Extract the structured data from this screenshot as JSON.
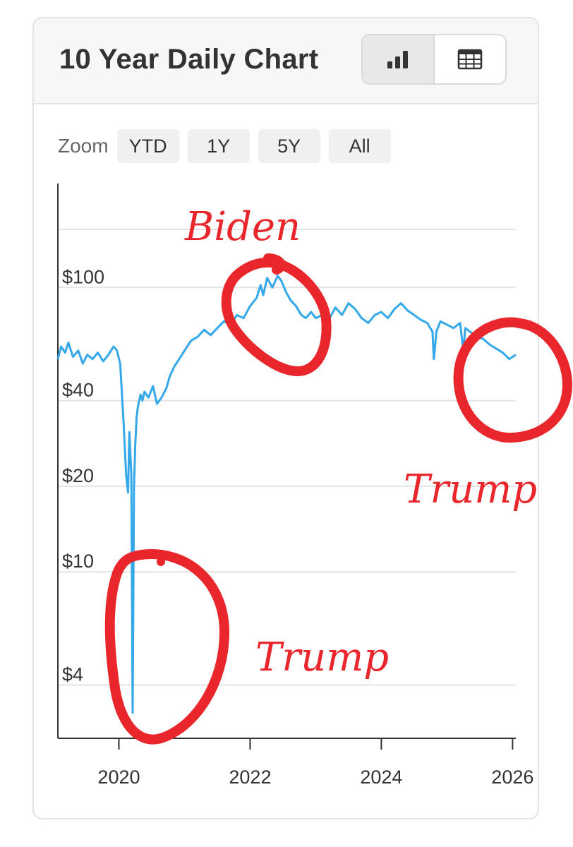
{
  "header": {
    "title": "10 Year Daily Chart",
    "chart_view_icon": "bar-chart-icon",
    "table_view_icon": "table-icon"
  },
  "zoom": {
    "label": "Zoom",
    "options": [
      "YTD",
      "1Y",
      "5Y",
      "All"
    ]
  },
  "annotations": {
    "peak_label": "Biden",
    "recent_label": "Trump",
    "crash_label": "Trump",
    "color": "#e8262b"
  },
  "chart_data": {
    "type": "line",
    "title": "10 Year Daily Chart",
    "y_scale": "log",
    "ylim": [
      2.6,
      160
    ],
    "xlim": [
      2019.07,
      2026.05
    ],
    "yticks": [
      4,
      10,
      20,
      40,
      100
    ],
    "ytick_labels": [
      "$4",
      "$10",
      "$20",
      "$40",
      "$100"
    ],
    "xticks": [
      2020,
      2022,
      2024,
      2026
    ],
    "xtick_labels": [
      "2020",
      "2022",
      "2024",
      "2026"
    ],
    "grid": true,
    "line_color": "#35a8ea",
    "series": [
      {
        "x": [
          2019.07,
          2019.12,
          2019.18,
          2019.23,
          2019.3,
          2019.38,
          2019.45,
          2019.52,
          2019.6,
          2019.68,
          2019.76,
          2019.84,
          2019.92,
          2019.97,
          2020.02,
          2020.07,
          2020.11,
          2020.14,
          2020.16,
          2020.19,
          2020.21,
          2020.23,
          2020.25,
          2020.27,
          2020.29,
          2020.31,
          2020.33,
          2020.36,
          2020.39,
          2020.45,
          2020.52,
          2020.58,
          2020.65,
          2020.72,
          2020.78,
          2020.85,
          2020.92,
          2021.0,
          2021.1,
          2021.2,
          2021.3,
          2021.4,
          2021.5,
          2021.6,
          2021.7,
          2021.8,
          2021.9,
          2022.0,
          2022.1,
          2022.16,
          2022.2,
          2022.26,
          2022.34,
          2022.42,
          2022.48,
          2022.55,
          2022.62,
          2022.7,
          2022.78,
          2022.85,
          2022.93,
          2023.0,
          2023.1,
          2023.2,
          2023.3,
          2023.4,
          2023.5,
          2023.6,
          2023.7,
          2023.8,
          2023.9,
          2024.0,
          2024.1,
          2024.2,
          2024.3,
          2024.4,
          2024.5,
          2024.6,
          2024.7,
          2024.78,
          2024.8,
          2024.84,
          2024.9,
          2025.0,
          2025.1,
          2025.2,
          2025.25,
          2025.28,
          2025.35,
          2025.45,
          2025.55,
          2025.65,
          2025.75,
          2025.85,
          2025.95,
          2026.05
        ],
        "y": [
          56,
          62,
          59,
          64,
          57,
          60,
          54,
          58,
          56,
          59,
          55,
          58,
          62,
          60,
          54,
          34,
          22,
          19,
          31,
          22,
          3.2,
          20,
          28,
          35,
          38,
          40,
          42,
          40,
          43,
          41,
          45,
          39,
          41,
          44,
          49,
          53,
          56,
          60,
          65,
          67,
          71,
          68,
          72,
          76,
          74,
          80,
          78,
          86,
          92,
          102,
          94,
          108,
          100,
          110,
          105,
          96,
          90,
          86,
          80,
          78,
          82,
          78,
          80,
          77,
          85,
          80,
          88,
          84,
          78,
          75,
          80,
          82,
          78,
          84,
          88,
          83,
          80,
          77,
          75,
          70,
          56,
          70,
          76,
          74,
          72,
          75,
          60,
          72,
          70,
          67,
          66,
          63,
          61,
          59,
          56,
          58
        ]
      }
    ],
    "annotations": [
      {
        "text": "Biden",
        "x": 2022.5,
        "y": 105
      },
      {
        "text": "Trump",
        "x": 2025.95,
        "y": 55
      },
      {
        "text": "Trump",
        "x": 2020.3,
        "y": 5.5
      }
    ]
  }
}
